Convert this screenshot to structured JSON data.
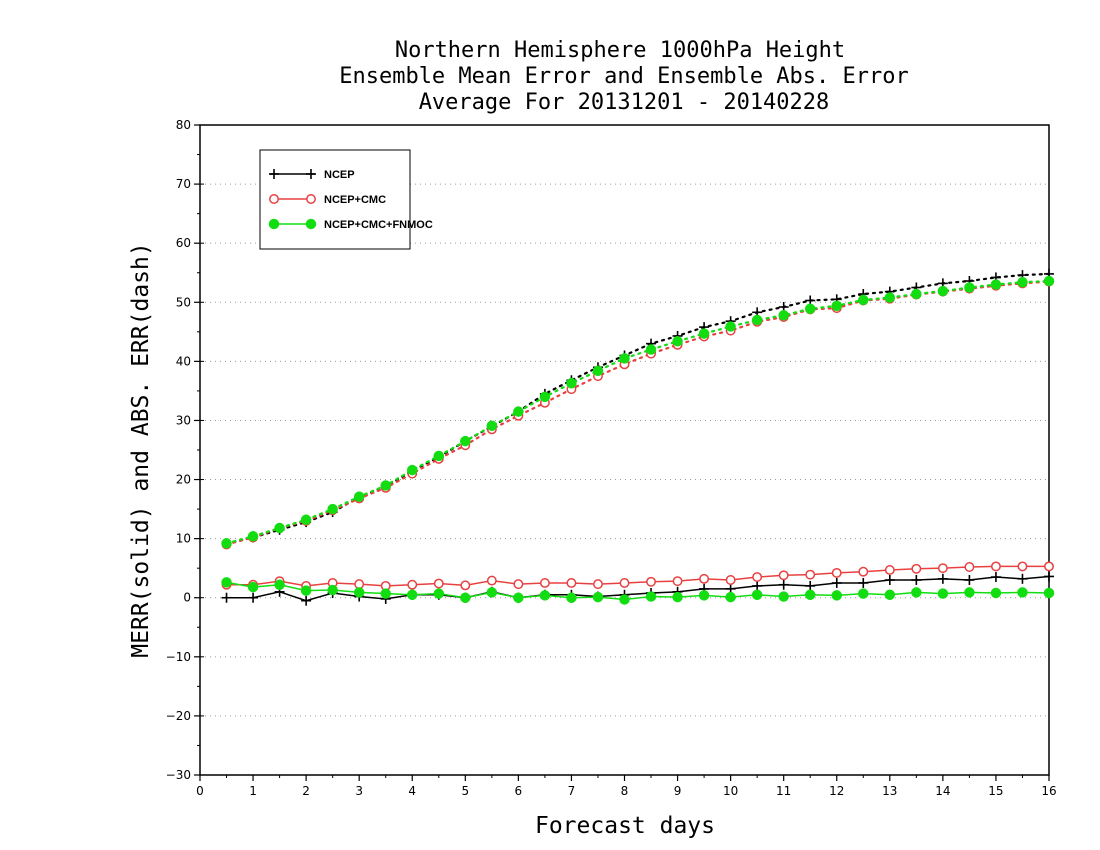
{
  "chart_data": {
    "type": "line",
    "title_lines": [
      "Northern Hemisphere 1000hPa Height",
      "Ensemble Mean Error and Ensemble Abs. Error",
      "Average For 20131201 - 20140228"
    ],
    "xlabel": "Forecast days",
    "ylabel": "MERR(solid) and ABS. ERR(dash)",
    "xlim": [
      0,
      16
    ],
    "ylim": [
      -30,
      80
    ],
    "x_ticks": [
      0,
      1,
      2,
      3,
      4,
      5,
      6,
      7,
      8,
      9,
      10,
      11,
      12,
      13,
      14,
      15,
      16
    ],
    "y_ticks": [
      -30,
      -20,
      -10,
      0,
      10,
      20,
      30,
      40,
      50,
      60,
      70,
      80
    ],
    "grid": "horizontal dotted",
    "legend_position": "top-left",
    "x": [
      0.5,
      1,
      1.5,
      2,
      2.5,
      3,
      3.5,
      4,
      4.5,
      5,
      5.5,
      6,
      6.5,
      7,
      7.5,
      8,
      8.5,
      9,
      9.5,
      10,
      10.5,
      11,
      11.5,
      12,
      12.5,
      13,
      13.5,
      14,
      14.5,
      15,
      15.5,
      16
    ],
    "series": [
      {
        "name": "NCEP",
        "color": "#000000",
        "marker": "plus",
        "mean_error": [
          0,
          0,
          1,
          -0.5,
          0.8,
          0.2,
          -0.2,
          0.5,
          0.5,
          0,
          1,
          0,
          0.5,
          0.5,
          0.2,
          0.5,
          0.8,
          1,
          1.5,
          1.5,
          2,
          2.2,
          2,
          2.5,
          2.5,
          3,
          3,
          3.2,
          3,
          3.5,
          3.2,
          3.6
        ],
        "abs_error": [
          9.2,
          10.2,
          11.5,
          12.8,
          14.5,
          17,
          18.8,
          21.5,
          23.8,
          26.5,
          29,
          31.5,
          34.5,
          36.8,
          39,
          41,
          43,
          44.3,
          45.8,
          46.8,
          48.3,
          49.2,
          50.3,
          50.5,
          51.4,
          51.8,
          52.5,
          53.2,
          53.6,
          54.2,
          54.6,
          54.8
        ]
      },
      {
        "name": "NCEP+CMC",
        "color": "#e84040",
        "marker": "open-circle",
        "mean_error": [
          2.2,
          2.2,
          2.8,
          2,
          2.5,
          2.3,
          2,
          2.2,
          2.4,
          2.1,
          2.9,
          2.3,
          2.5,
          2.5,
          2.3,
          2.5,
          2.7,
          2.8,
          3.2,
          3,
          3.5,
          3.8,
          3.9,
          4.2,
          4.4,
          4.7,
          4.9,
          5,
          5.2,
          5.3,
          5.3,
          5.3
        ],
        "abs_error": [
          9,
          10.2,
          11.8,
          13,
          14.8,
          16.8,
          18.6,
          21,
          23.5,
          25.8,
          28.5,
          30.8,
          33,
          35.3,
          37.5,
          39.5,
          41.3,
          42.8,
          44.2,
          45.2,
          46.7,
          47.5,
          48.8,
          49,
          50.3,
          50.6,
          51.3,
          51.8,
          52.3,
          52.8,
          53.2,
          53.5
        ]
      },
      {
        "name": "NCEP+CMC+FNMOC",
        "color": "#11dd11",
        "marker": "filled-circle",
        "mean_error": [
          2.6,
          1.8,
          2.2,
          1.2,
          1.3,
          0.9,
          0.7,
          0.5,
          0.7,
          0,
          0.9,
          0,
          0.4,
          0,
          0.1,
          -0.3,
          0.2,
          0.1,
          0.4,
          0.1,
          0.5,
          0.2,
          0.5,
          0.4,
          0.7,
          0.5,
          0.9,
          0.7,
          0.9,
          0.8,
          0.9,
          0.8
        ],
        "abs_error": [
          9.2,
          10.4,
          11.8,
          13.2,
          15,
          17.1,
          19,
          21.6,
          24,
          26.5,
          29.1,
          31.5,
          34,
          36.3,
          38.4,
          40.5,
          42,
          43.4,
          44.7,
          45.9,
          47,
          47.8,
          48.9,
          49.4,
          50.4,
          50.8,
          51.4,
          51.9,
          52.5,
          53,
          53.4,
          53.6
        ]
      }
    ]
  }
}
